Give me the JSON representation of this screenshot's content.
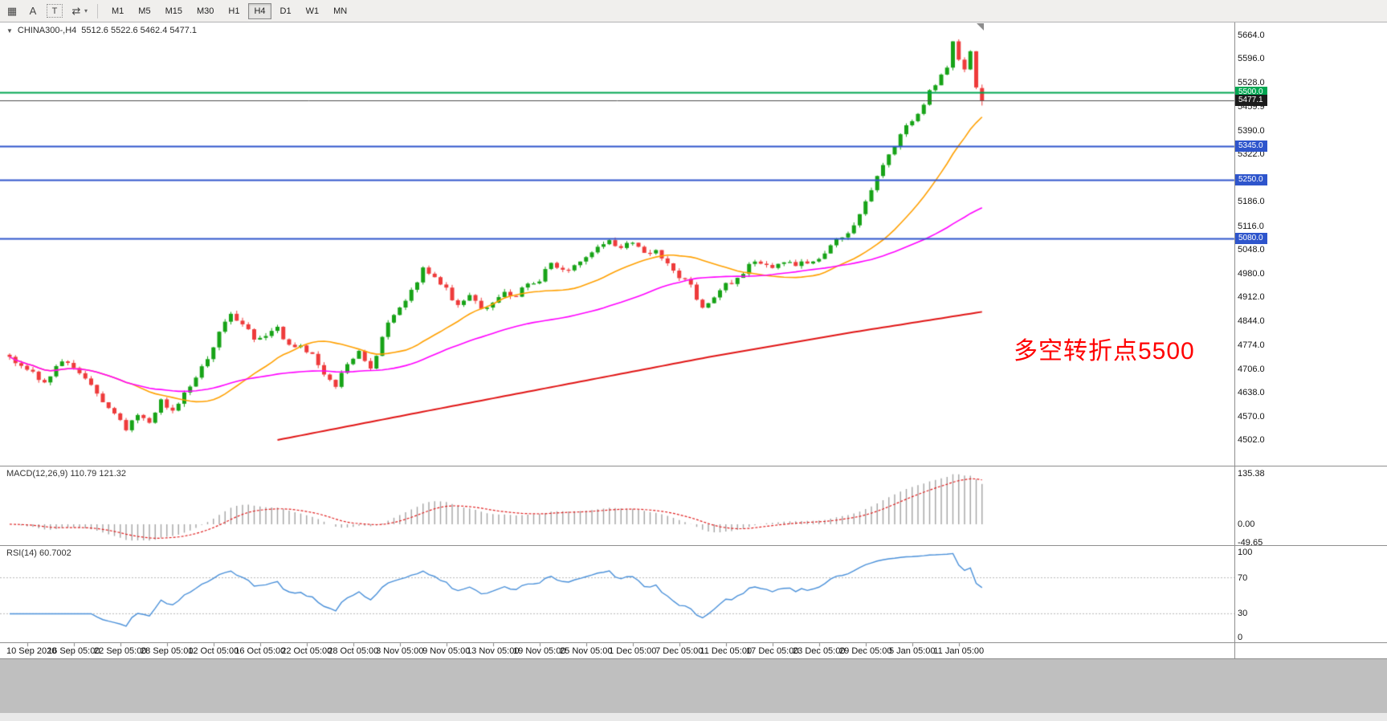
{
  "window": {
    "bg": "#ffffff",
    "workspace_bg": "#bfbfbf"
  },
  "toolbar": {
    "icons": [
      {
        "name": "quote-grid-icon",
        "glyph": "▦"
      },
      {
        "name": "text-annotation-icon",
        "glyph": "A"
      },
      {
        "name": "text-label-icon",
        "glyph": "T",
        "boxed": true
      },
      {
        "name": "cursor-tool-icon",
        "glyph": "⇄"
      },
      {
        "name": "tool-dropdown-caret-icon",
        "glyph": "▾",
        "small": true
      }
    ],
    "timeframes": [
      {
        "label": "M1",
        "active": false
      },
      {
        "label": "M5",
        "active": false
      },
      {
        "label": "M15",
        "active": false
      },
      {
        "label": "M30",
        "active": false
      },
      {
        "label": "H1",
        "active": false
      },
      {
        "label": "H4",
        "active": true
      },
      {
        "label": "D1",
        "active": false
      },
      {
        "label": "W1",
        "active": false
      },
      {
        "label": "MN",
        "active": false
      }
    ]
  },
  "chart": {
    "title_symbol": "CHINA300-,H4",
    "title_ohlc": "5512.6 5522.6 5462.4 5477.1",
    "annotation": "多空转折点5500",
    "annotation_color": "#ff0000",
    "bull_color": "#17a317",
    "bear_color": "#ee3b3b"
  },
  "price_axis": {
    "labels": [
      "5664.0",
      "5596.0",
      "5528.0",
      "5459.9",
      "5390.0",
      "5322.0",
      "5254.0",
      "5186.0",
      "5116.0",
      "5048.0",
      "4980.0",
      "4912.0",
      "4844.0",
      "4774.0",
      "4706.0",
      "4638.0",
      "4570.0",
      "4502.0"
    ],
    "badges": [
      {
        "text": "5500.0",
        "price": 5500.0,
        "bg": "#00a651",
        "line_color": "#00a651",
        "line_width": 2,
        "type": "hline"
      },
      {
        "text": "5477.1",
        "price": 5477.1,
        "bg": "#1c1c1c",
        "line_color": "#4d4d4d",
        "line_width": 1,
        "type": "current"
      },
      {
        "text": "5345.0",
        "price": 5345.0,
        "bg": "#2e55cc",
        "line_color": "#2e55cc",
        "line_width": 2,
        "type": "hline"
      },
      {
        "text": "5250.0",
        "price": 5250.0,
        "bg": "#2e55cc",
        "line_color": "#2e55cc",
        "line_width": 2,
        "type": "hline"
      },
      {
        "text": "5080.0",
        "price": 5080.0,
        "bg": "#2e55cc",
        "line_color": "#2e55cc",
        "line_width": 2,
        "type": "hline"
      }
    ]
  },
  "chart_data": {
    "type": "candlestick",
    "symbol": "CHINA300-",
    "timeframe": "H4",
    "grid": false,
    "current": {
      "open": 5512.6,
      "high": 5522.6,
      "low": 5462.4,
      "close": 5477.1
    },
    "candle_count": 168,
    "y_range": [
      4502.0,
      5664.0
    ],
    "x_labels": [
      "10 Sep 2020",
      "16 Sep 05:00",
      "22 Sep 05:00",
      "28 Sep 05:00",
      "12 Oct 05:00",
      "16 Oct 05:00",
      "22 Oct 05:00",
      "28 Oct 05:00",
      "3 Nov 05:00",
      "9 Nov 05:00",
      "13 Nov 05:00",
      "19 Nov 05:00",
      "25 Nov 05:00",
      "1 Dec 05:00",
      "7 Dec 05:00",
      "11 Dec 05:00",
      "17 Dec 05:00",
      "23 Dec 05:00",
      "29 Dec 05:00",
      "5 Jan 05:00",
      "11 Jan 05:00"
    ],
    "price_waypoints": [
      [
        0,
        4735
      ],
      [
        3,
        4705
      ],
      [
        6,
        4668
      ],
      [
        9,
        4730
      ],
      [
        12,
        4695
      ],
      [
        15,
        4640
      ],
      [
        18,
        4575
      ],
      [
        20,
        4528
      ],
      [
        22,
        4580
      ],
      [
        24,
        4545
      ],
      [
        26,
        4618
      ],
      [
        28,
        4582
      ],
      [
        30,
        4640
      ],
      [
        32,
        4685
      ],
      [
        34,
        4730
      ],
      [
        36,
        4810
      ],
      [
        38,
        4860
      ],
      [
        40,
        4832
      ],
      [
        42,
        4795
      ],
      [
        44,
        4800
      ],
      [
        46,
        4825
      ],
      [
        48,
        4768
      ],
      [
        50,
        4772
      ],
      [
        52,
        4745
      ],
      [
        54,
        4690
      ],
      [
        56,
        4662
      ],
      [
        58,
        4725
      ],
      [
        60,
        4752
      ],
      [
        62,
        4705
      ],
      [
        64,
        4795
      ],
      [
        66,
        4868
      ],
      [
        68,
        4895
      ],
      [
        70,
        4958
      ],
      [
        71,
        5005
      ],
      [
        73,
        4962
      ],
      [
        75,
        4935
      ],
      [
        77,
        4885
      ],
      [
        79,
        4925
      ],
      [
        81,
        4872
      ],
      [
        83,
        4902
      ],
      [
        85,
        4935
      ],
      [
        87,
        4912
      ],
      [
        89,
        4952
      ],
      [
        91,
        4965
      ],
      [
        93,
        5012
      ],
      [
        95,
        4985
      ],
      [
        97,
        5002
      ],
      [
        99,
        5032
      ],
      [
        101,
        5062
      ],
      [
        103,
        5072
      ],
      [
        105,
        5052
      ],
      [
        107,
        5072
      ],
      [
        109,
        5035
      ],
      [
        111,
        5052
      ],
      [
        113,
        5002
      ],
      [
        115,
        4972
      ],
      [
        117,
        4942
      ],
      [
        119,
        4875
      ],
      [
        121,
        4905
      ],
      [
        123,
        4952
      ],
      [
        125,
        4962
      ],
      [
        127,
        5002
      ],
      [
        129,
        5012
      ],
      [
        131,
        4992
      ],
      [
        133,
        5012
      ],
      [
        135,
        5002
      ],
      [
        137,
        5012
      ],
      [
        139,
        5022
      ],
      [
        141,
        5062
      ],
      [
        143,
        5085
      ],
      [
        145,
        5122
      ],
      [
        147,
        5185
      ],
      [
        149,
        5255
      ],
      [
        151,
        5315
      ],
      [
        153,
        5385
      ],
      [
        155,
        5415
      ],
      [
        157,
        5472
      ],
      [
        159,
        5525
      ],
      [
        161,
        5565
      ],
      [
        162,
        5645
      ],
      [
        163,
        5602
      ],
      [
        164,
        5565
      ],
      [
        165,
        5622
      ],
      [
        166,
        5513
      ],
      [
        167,
        5477
      ]
    ],
    "ma_fast": {
      "name": "fast-ma",
      "color": "#ffa000",
      "period": 22
    },
    "ma_mid": {
      "name": "mid-ma",
      "color": "#ff00ff",
      "period": 55
    },
    "ma_slow": {
      "name": "slow-ma",
      "color": "#e01515",
      "waypoints": [
        [
          46,
          4502
        ],
        [
          70,
          4580
        ],
        [
          95,
          4660
        ],
        [
          120,
          4740
        ],
        [
          145,
          4812
        ],
        [
          167,
          4870
        ]
      ]
    },
    "levels": [
      5500.0,
      5345.0,
      5250.0,
      5080.0
    ],
    "indicators": [
      {
        "name": "MACD",
        "label": "MACD(12,26,9) 110.79 121.32",
        "params": [
          12,
          26,
          9
        ],
        "values": [
          110.79,
          121.32
        ],
        "axis": [
          {
            "text": "135.38",
            "value": 135.38
          },
          {
            "text": "0.00",
            "value": 0
          },
          {
            "text": "-49.65",
            "value": -49.65
          }
        ],
        "histogram_color": "#a3a3a3",
        "signal_color": "#e02020"
      },
      {
        "name": "RSI",
        "label": "RSI(14) 60.7002",
        "params": [
          14
        ],
        "value": 60.7002,
        "axis": [
          {
            "text": "100",
            "value": 100
          },
          {
            "text": "70",
            "value": 70
          },
          {
            "text": "30",
            "value": 30
          },
          {
            "text": "0",
            "value": 0
          }
        ],
        "levels": [
          70,
          30
        ],
        "line_color": "#4a90d9"
      }
    ]
  }
}
